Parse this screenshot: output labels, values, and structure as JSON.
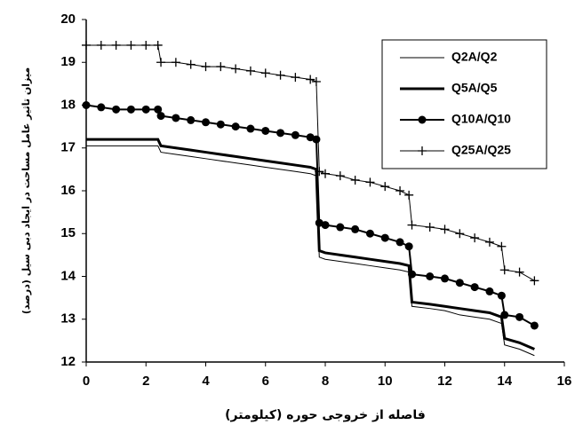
{
  "chart_data": {
    "type": "line",
    "x_label": "فاصله از خروجی حوره (کیلومتر)",
    "y_label": "میزان تاثیر عامل مساحت در ایجاد دبی سیل (درصد)",
    "x": [
      0,
      0.5,
      1,
      1.5,
      2,
      2.4,
      2.5,
      3,
      3.5,
      4,
      4.5,
      5,
      5.5,
      6,
      6.5,
      7,
      7.5,
      7.7,
      7.8,
      8,
      8.5,
      9,
      9.5,
      10,
      10.5,
      10.8,
      10.9,
      11.5,
      12,
      12.5,
      13,
      13.5,
      13.9,
      14,
      14.5,
      15
    ],
    "series": [
      {
        "name": "Q2A/Q2",
        "color": "#000000",
        "line_width": 1,
        "marker": null,
        "values": [
          17.05,
          17.05,
          17.05,
          17.05,
          17.05,
          17.05,
          16.9,
          16.85,
          16.8,
          16.75,
          16.7,
          16.65,
          16.6,
          16.55,
          16.5,
          16.45,
          16.4,
          16.35,
          14.45,
          14.4,
          14.35,
          14.3,
          14.25,
          14.2,
          14.15,
          14.1,
          13.3,
          13.25,
          13.2,
          13.1,
          13.05,
          13.0,
          12.9,
          12.4,
          12.3,
          12.15
        ]
      },
      {
        "name": "Q5A/Q5",
        "color": "#000000",
        "line_width": 3,
        "marker": null,
        "values": [
          17.2,
          17.2,
          17.2,
          17.2,
          17.2,
          17.2,
          17.05,
          17.0,
          16.95,
          16.9,
          16.85,
          16.8,
          16.75,
          16.7,
          16.65,
          16.6,
          16.55,
          16.5,
          14.6,
          14.55,
          14.5,
          14.45,
          14.4,
          14.35,
          14.3,
          14.25,
          13.4,
          13.35,
          13.3,
          13.25,
          13.2,
          13.15,
          13.05,
          12.55,
          12.45,
          12.3
        ]
      },
      {
        "name": "Q10A/Q10",
        "color": "#000000",
        "line_width": 2,
        "marker": "circle",
        "values": [
          18.0,
          17.95,
          17.9,
          17.9,
          17.9,
          17.9,
          17.75,
          17.7,
          17.65,
          17.6,
          17.55,
          17.5,
          17.45,
          17.4,
          17.35,
          17.3,
          17.25,
          17.2,
          15.25,
          15.2,
          15.15,
          15.1,
          15.0,
          14.9,
          14.8,
          14.7,
          14.05,
          14.0,
          13.95,
          13.85,
          13.75,
          13.65,
          13.55,
          13.1,
          13.05,
          12.85
        ]
      },
      {
        "name": "Q25A/Q25",
        "color": "#000000",
        "line_width": 1,
        "marker": "plus",
        "values": [
          19.4,
          19.4,
          19.4,
          19.4,
          19.4,
          19.4,
          19.0,
          19.0,
          18.95,
          18.9,
          18.9,
          18.85,
          18.8,
          18.75,
          18.7,
          18.65,
          18.6,
          18.55,
          16.45,
          16.4,
          16.35,
          16.25,
          16.2,
          16.1,
          16.0,
          15.9,
          15.2,
          15.15,
          15.1,
          15.0,
          14.9,
          14.8,
          14.7,
          14.15,
          14.1,
          13.9
        ]
      }
    ],
    "xlim": [
      0,
      16
    ],
    "xticks": [
      0,
      2,
      4,
      6,
      8,
      10,
      12,
      14,
      16
    ],
    "ylim": [
      12,
      20
    ],
    "yticks": [
      12,
      13,
      14,
      15,
      16,
      17,
      18,
      19,
      20
    ],
    "grid": false,
    "legend": "upper right"
  }
}
